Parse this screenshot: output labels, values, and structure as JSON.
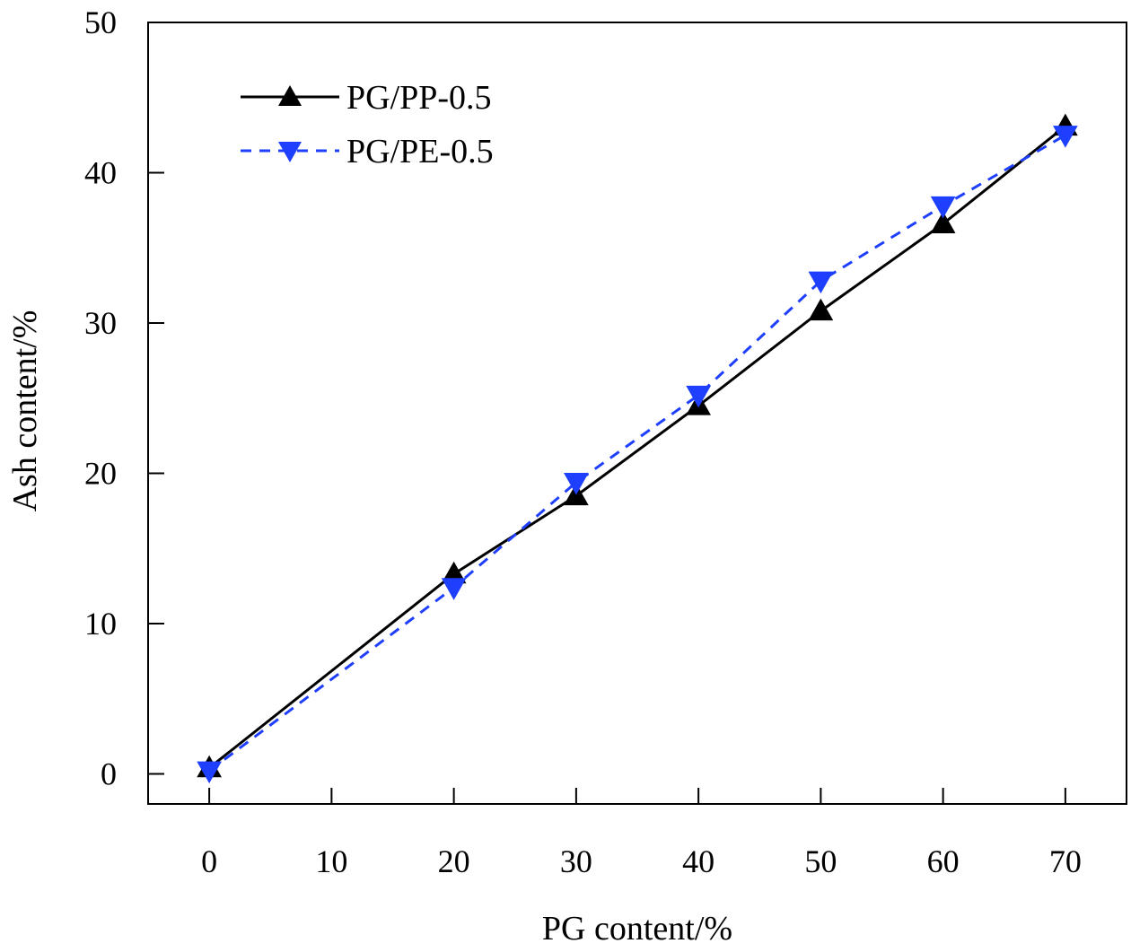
{
  "chart_data": {
    "type": "line",
    "xlabel": "PG content/%",
    "ylabel": "Ash content/%",
    "xlim": [
      -5,
      75
    ],
    "ylim": [
      -2,
      50
    ],
    "xticks": [
      0,
      10,
      20,
      30,
      40,
      50,
      60,
      70
    ],
    "xtick_labels": [
      "0",
      "10",
      "20",
      "30",
      "40",
      "50",
      "60",
      "70"
    ],
    "yticks": [
      0,
      10,
      20,
      30,
      40,
      50
    ],
    "ytick_labels": [
      "0",
      "10",
      "20",
      "30",
      "40",
      "50"
    ],
    "grid": false,
    "legend_position": "top-left",
    "series": [
      {
        "name": "PG/PP-0.5",
        "color": "#000000",
        "line_style": "solid",
        "marker": "triangle-up",
        "x": [
          0,
          20,
          30,
          40,
          50,
          60,
          70
        ],
        "y": [
          0.4,
          13.3,
          18.5,
          24.5,
          30.8,
          36.6,
          43.1
        ]
      },
      {
        "name": "PG/PE-0.5",
        "color": "#1f3fff",
        "line_style": "dashed",
        "marker": "triangle-down",
        "x": [
          0,
          20,
          30,
          40,
          50,
          60,
          70
        ],
        "y": [
          0.2,
          12.4,
          19.4,
          25.2,
          32.8,
          37.8,
          42.5
        ]
      }
    ]
  }
}
